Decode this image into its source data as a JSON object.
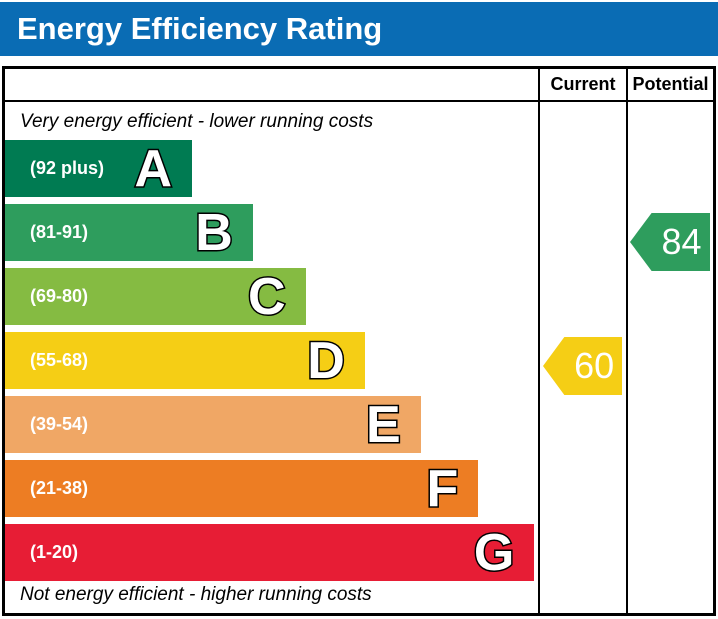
{
  "title": "Energy Efficiency Rating",
  "table": {
    "columns": {
      "current": "Current",
      "potential": "Potential"
    }
  },
  "notes": {
    "top": "Very energy efficient - lower running costs",
    "bottom": "Not energy efficient - higher running costs"
  },
  "colors": {
    "header_bg": "#0a6cb4",
    "letter_fill": "#ffffff",
    "letter_outline": "#000000",
    "border": "#000000"
  },
  "chart_data": {
    "type": "bar",
    "title": "Energy Efficiency Rating",
    "bands": [
      {
        "letter": "A",
        "range": "(92 plus)",
        "color": "#007b52",
        "width_pct": 35.1
      },
      {
        "letter": "B",
        "range": "(81-91)",
        "color": "#2e9d5d",
        "width_pct": 46.5
      },
      {
        "letter": "C",
        "range": "(69-80)",
        "color": "#85bb42",
        "width_pct": 56.4
      },
      {
        "letter": "D",
        "range": "(55-68)",
        "color": "#f5ce15",
        "width_pct": 67.5
      },
      {
        "letter": "E",
        "range": "(39-54)",
        "color": "#f0a765",
        "width_pct": 78.0
      },
      {
        "letter": "F",
        "range": "(21-38)",
        "color": "#ed7d23",
        "width_pct": 88.8
      },
      {
        "letter": "G",
        "range": "(1-20)",
        "color": "#e71d35",
        "width_pct": 99.3
      }
    ],
    "current": {
      "value": 60,
      "band": "D",
      "color": "#f5ce15"
    },
    "potential": {
      "value": 84,
      "band": "B",
      "color": "#2e9d5d"
    }
  }
}
